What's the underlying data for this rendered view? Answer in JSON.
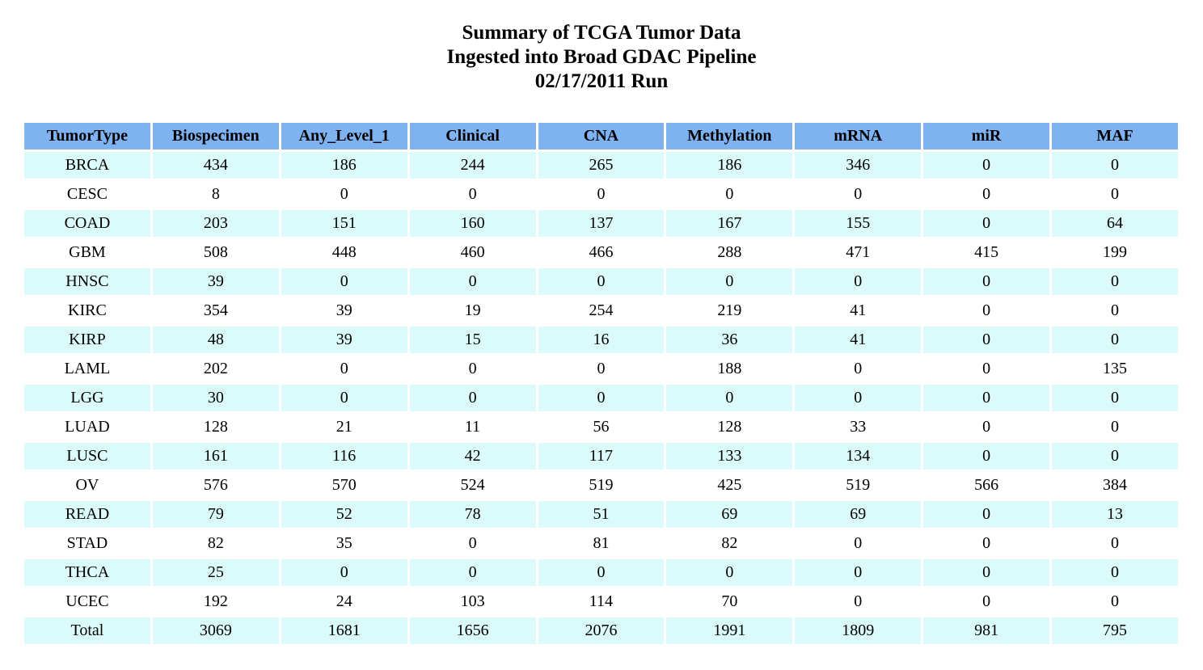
{
  "title": {
    "line1": "Summary of TCGA Tumor Data",
    "line2": "Ingested into Broad GDAC Pipeline",
    "line3": "02/17/2011 Run"
  },
  "colors": {
    "header_bg": "#7FB2F0",
    "row_bg": "#FFFFFF",
    "row_alt_bg": "#DBFAFA",
    "text": "#000000",
    "page_bg": "#FFFFFF"
  },
  "chart_data": {
    "type": "table",
    "title": "Summary of TCGA Tumor Data Ingested into Broad GDAC Pipeline 02/17/2011 Run",
    "columns": [
      "TumorType",
      "Biospecimen",
      "Any_Level_1",
      "Clinical",
      "CNA",
      "Methylation",
      "mRNA",
      "miR",
      "MAF"
    ],
    "rows": [
      [
        "BRCA",
        434,
        186,
        244,
        265,
        186,
        346,
        0,
        0
      ],
      [
        "CESC",
        8,
        0,
        0,
        0,
        0,
        0,
        0,
        0
      ],
      [
        "COAD",
        203,
        151,
        160,
        137,
        167,
        155,
        0,
        64
      ],
      [
        "GBM",
        508,
        448,
        460,
        466,
        288,
        471,
        415,
        199
      ],
      [
        "HNSC",
        39,
        0,
        0,
        0,
        0,
        0,
        0,
        0
      ],
      [
        "KIRC",
        354,
        39,
        19,
        254,
        219,
        41,
        0,
        0
      ],
      [
        "KIRP",
        48,
        39,
        15,
        16,
        36,
        41,
        0,
        0
      ],
      [
        "LAML",
        202,
        0,
        0,
        0,
        188,
        0,
        0,
        135
      ],
      [
        "LGG",
        30,
        0,
        0,
        0,
        0,
        0,
        0,
        0
      ],
      [
        "LUAD",
        128,
        21,
        11,
        56,
        128,
        33,
        0,
        0
      ],
      [
        "LUSC",
        161,
        116,
        42,
        117,
        133,
        134,
        0,
        0
      ],
      [
        "OV",
        576,
        570,
        524,
        519,
        425,
        519,
        566,
        384
      ],
      [
        "READ",
        79,
        52,
        78,
        51,
        69,
        69,
        0,
        13
      ],
      [
        "STAD",
        82,
        35,
        0,
        81,
        82,
        0,
        0,
        0
      ],
      [
        "THCA",
        25,
        0,
        0,
        0,
        0,
        0,
        0,
        0
      ],
      [
        "UCEC",
        192,
        24,
        103,
        114,
        70,
        0,
        0,
        0
      ],
      [
        "Total",
        3069,
        1681,
        1656,
        2076,
        1991,
        1809,
        981,
        795
      ]
    ]
  }
}
